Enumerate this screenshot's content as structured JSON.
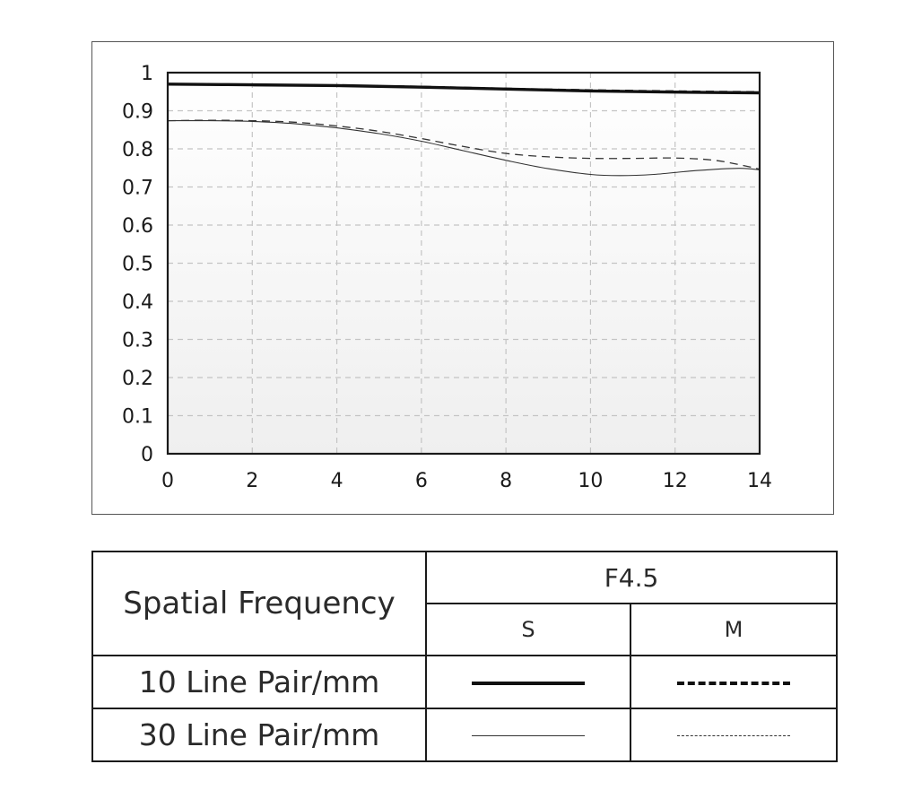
{
  "chart_data": {
    "type": "line",
    "xlim": [
      0,
      14
    ],
    "ylim": [
      0,
      1
    ],
    "x_ticks": [
      "0",
      "2",
      "4",
      "6",
      "8",
      "10",
      "12",
      "14"
    ],
    "y_ticks": [
      "0",
      "0.1",
      "0.2",
      "0.3",
      "0.4",
      "0.5",
      "0.6",
      "0.7",
      "0.8",
      "0.9",
      "1"
    ],
    "grid": true,
    "series": [
      {
        "name": "10 Line Pair/mm S",
        "style": "solid-thick",
        "color": "#111111",
        "x": [
          0,
          2,
          4,
          6,
          8,
          10,
          12,
          14
        ],
        "y": [
          0.97,
          0.968,
          0.966,
          0.962,
          0.957,
          0.952,
          0.949,
          0.947
        ]
      },
      {
        "name": "10 Line Pair/mm M",
        "style": "dashed-thick",
        "color": "#111111",
        "x": [
          0,
          2,
          4,
          6,
          8,
          10,
          12,
          14
        ],
        "y": [
          0.97,
          0.968,
          0.966,
          0.963,
          0.958,
          0.954,
          0.951,
          0.949
        ]
      },
      {
        "name": "30 Line Pair/mm S",
        "style": "solid-thin",
        "color": "#333333",
        "x": [
          0,
          1,
          2,
          3,
          4,
          5,
          6,
          7,
          8,
          9,
          10,
          10.7,
          11.5,
          12.5,
          13.5,
          14
        ],
        "y": [
          0.874,
          0.874,
          0.872,
          0.866,
          0.855,
          0.84,
          0.82,
          0.795,
          0.77,
          0.748,
          0.733,
          0.73,
          0.733,
          0.743,
          0.749,
          0.745
        ]
      },
      {
        "name": "30 Line Pair/mm M",
        "style": "dashed-thin",
        "color": "#333333",
        "x": [
          0,
          1,
          2,
          3,
          4,
          5,
          6,
          7,
          8,
          9,
          10,
          11,
          12,
          13,
          14
        ],
        "y": [
          0.874,
          0.875,
          0.874,
          0.87,
          0.86,
          0.846,
          0.827,
          0.806,
          0.788,
          0.779,
          0.775,
          0.775,
          0.776,
          0.769,
          0.747
        ]
      }
    ]
  },
  "legend": {
    "header": "Spatial Frequency",
    "aperture": "F4.5",
    "col_s": "S",
    "col_m": "M",
    "rows": [
      {
        "label": "10 Line Pair/mm",
        "s_style": "solid-thick",
        "m_style": "dashed-thick"
      },
      {
        "label": "30 Line Pair/mm",
        "s_style": "solid-thin",
        "m_style": "dashed-thin"
      }
    ]
  }
}
